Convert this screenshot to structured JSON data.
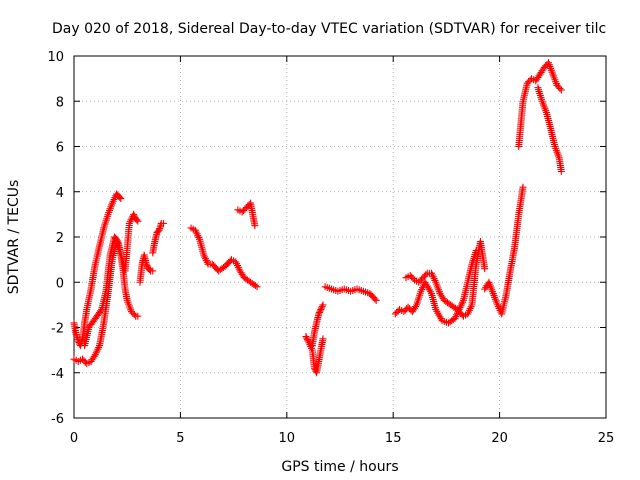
{
  "chart_data": {
    "type": "scatter",
    "title": "Day 020 of 2018, Sidereal Day-to-day VTEC variation (SDTVAR) for receiver tilc",
    "xlabel": "GPS time / hours",
    "ylabel": "SDTVAR / TECUs",
    "xlim": [
      0,
      25
    ],
    "ylim": [
      -6,
      10
    ],
    "xticks": [
      0,
      5,
      10,
      15,
      20,
      25
    ],
    "yticks": [
      -6,
      -4,
      -2,
      0,
      2,
      4,
      6,
      8,
      10
    ],
    "grid": true,
    "marker": "plus",
    "color": "#ff0000",
    "series": [
      {
        "x": [
          0.0,
          0.2,
          0.4,
          0.6,
          0.8,
          1.0,
          1.2,
          1.4,
          1.6,
          1.8,
          2.0,
          2.2,
          2.4,
          2.5,
          2.6,
          2.8,
          2.9,
          3.0
        ],
        "values": [
          -3.4,
          -3.5,
          -3.4,
          -3.6,
          -3.5,
          -3.2,
          -2.8,
          -1.8,
          -0.5,
          1.0,
          1.8,
          1.2,
          0.5,
          1.5,
          2.6,
          3.0,
          2.8,
          2.7
        ]
      },
      {
        "x": [
          0.0,
          0.1,
          0.2,
          0.3,
          0.4,
          0.5,
          0.6,
          0.8,
          1.0,
          1.2,
          1.4,
          1.6,
          1.8,
          2.0,
          2.1,
          2.2
        ],
        "values": [
          -1.8,
          -2.3,
          -2.6,
          -2.8,
          -2.5,
          -1.8,
          -1.2,
          -0.3,
          0.8,
          1.6,
          2.4,
          3.0,
          3.5,
          3.9,
          3.8,
          3.7
        ]
      },
      {
        "x": [
          0.5,
          0.7,
          1.0,
          1.3,
          1.5,
          1.7,
          1.9,
          2.0,
          2.1,
          2.2,
          2.3,
          2.4,
          2.5,
          2.7,
          2.9,
          3.0
        ],
        "values": [
          -2.8,
          -2.0,
          -1.6,
          -1.2,
          -0.4,
          1.2,
          2.0,
          1.9,
          1.7,
          1.2,
          0.6,
          -0.3,
          -0.8,
          -1.3,
          -1.5,
          -1.5
        ]
      },
      {
        "x": [
          3.1,
          3.2,
          3.3,
          3.4,
          3.5,
          3.6,
          3.7
        ],
        "values": [
          0.0,
          0.8,
          1.2,
          0.8,
          0.6,
          0.5,
          0.5
        ]
      },
      {
        "x": [
          3.7,
          3.8,
          3.9,
          4.0,
          4.1,
          4.2
        ],
        "values": [
          1.3,
          1.8,
          2.2,
          2.3,
          2.6,
          2.6
        ]
      },
      {
        "x": [
          5.5,
          5.7,
          5.9,
          6.1,
          6.3,
          6.5,
          6.8,
          7.1,
          7.4,
          7.6,
          7.8,
          8.0,
          8.3,
          8.6
        ],
        "values": [
          2.4,
          2.3,
          1.9,
          1.2,
          0.8,
          0.8,
          0.5,
          0.7,
          1.0,
          0.9,
          0.5,
          0.2,
          0.0,
          -0.2
        ]
      },
      {
        "x": [
          7.7,
          7.9,
          8.1,
          8.3,
          8.4,
          8.5
        ],
        "values": [
          3.2,
          3.1,
          3.3,
          3.5,
          3.0,
          2.5
        ]
      },
      {
        "x": [
          10.9,
          11.0,
          11.2,
          11.3,
          11.4,
          11.5,
          11.6,
          11.7
        ],
        "values": [
          -2.4,
          -2.6,
          -3.0,
          -3.8,
          -4.0,
          -3.5,
          -3.0,
          -2.5
        ]
      },
      {
        "x": [
          11.2,
          11.3,
          11.4,
          11.5,
          11.6,
          11.7
        ],
        "values": [
          -2.8,
          -2.2,
          -1.8,
          -1.4,
          -1.2,
          -1.0
        ]
      },
      {
        "x": [
          11.8,
          12.1,
          12.4,
          12.7,
          13.0,
          13.3,
          13.6,
          13.9,
          14.2
        ],
        "values": [
          -0.2,
          -0.3,
          -0.4,
          -0.3,
          -0.4,
          -0.3,
          -0.4,
          -0.5,
          -0.8
        ]
      },
      {
        "x": [
          15.1,
          15.3,
          15.5,
          15.7,
          15.9,
          16.1,
          16.3,
          16.5,
          16.8,
          17.0,
          17.3,
          17.6,
          17.9,
          18.1,
          18.3,
          18.5,
          18.7,
          18.9
        ],
        "values": [
          -1.4,
          -1.2,
          -1.3,
          -1.1,
          -1.3,
          -1.0,
          -0.4,
          0.0,
          -0.5,
          -1.2,
          -1.7,
          -1.8,
          -1.6,
          -1.2,
          -0.8,
          0.0,
          0.8,
          1.4
        ]
      },
      {
        "x": [
          15.6,
          15.8,
          16.0,
          16.2,
          16.4,
          16.6,
          16.8,
          17.0,
          17.2,
          17.4,
          17.7,
          18.0,
          18.3,
          18.5,
          18.7,
          18.9,
          19.1,
          19.3
        ],
        "values": [
          0.2,
          0.3,
          0.1,
          0.0,
          0.2,
          0.4,
          0.4,
          0.0,
          -0.5,
          -0.8,
          -1.0,
          -1.2,
          -1.5,
          -1.4,
          -1.0,
          0.8,
          1.8,
          0.6
        ]
      },
      {
        "x": [
          19.3,
          19.5,
          19.7,
          19.9,
          20.1,
          20.3,
          20.5,
          20.7,
          20.9,
          21.1
        ],
        "values": [
          -0.3,
          0.0,
          -0.5,
          -1.0,
          -1.4,
          -0.6,
          0.5,
          1.5,
          3.0,
          4.2
        ]
      },
      {
        "x": [
          20.9,
          21.1,
          21.3,
          21.5,
          21.7,
          21.9,
          22.1,
          22.3,
          22.5,
          22.7,
          22.9
        ],
        "values": [
          6.0,
          8.0,
          8.8,
          9.0,
          8.9,
          9.2,
          9.5,
          9.7,
          9.2,
          8.7,
          8.5
        ]
      },
      {
        "x": [
          21.8,
          22.0,
          22.2,
          22.4,
          22.6,
          22.8,
          22.9
        ],
        "values": [
          8.6,
          8.0,
          7.5,
          6.8,
          6.0,
          5.5,
          4.9
        ]
      }
    ]
  }
}
